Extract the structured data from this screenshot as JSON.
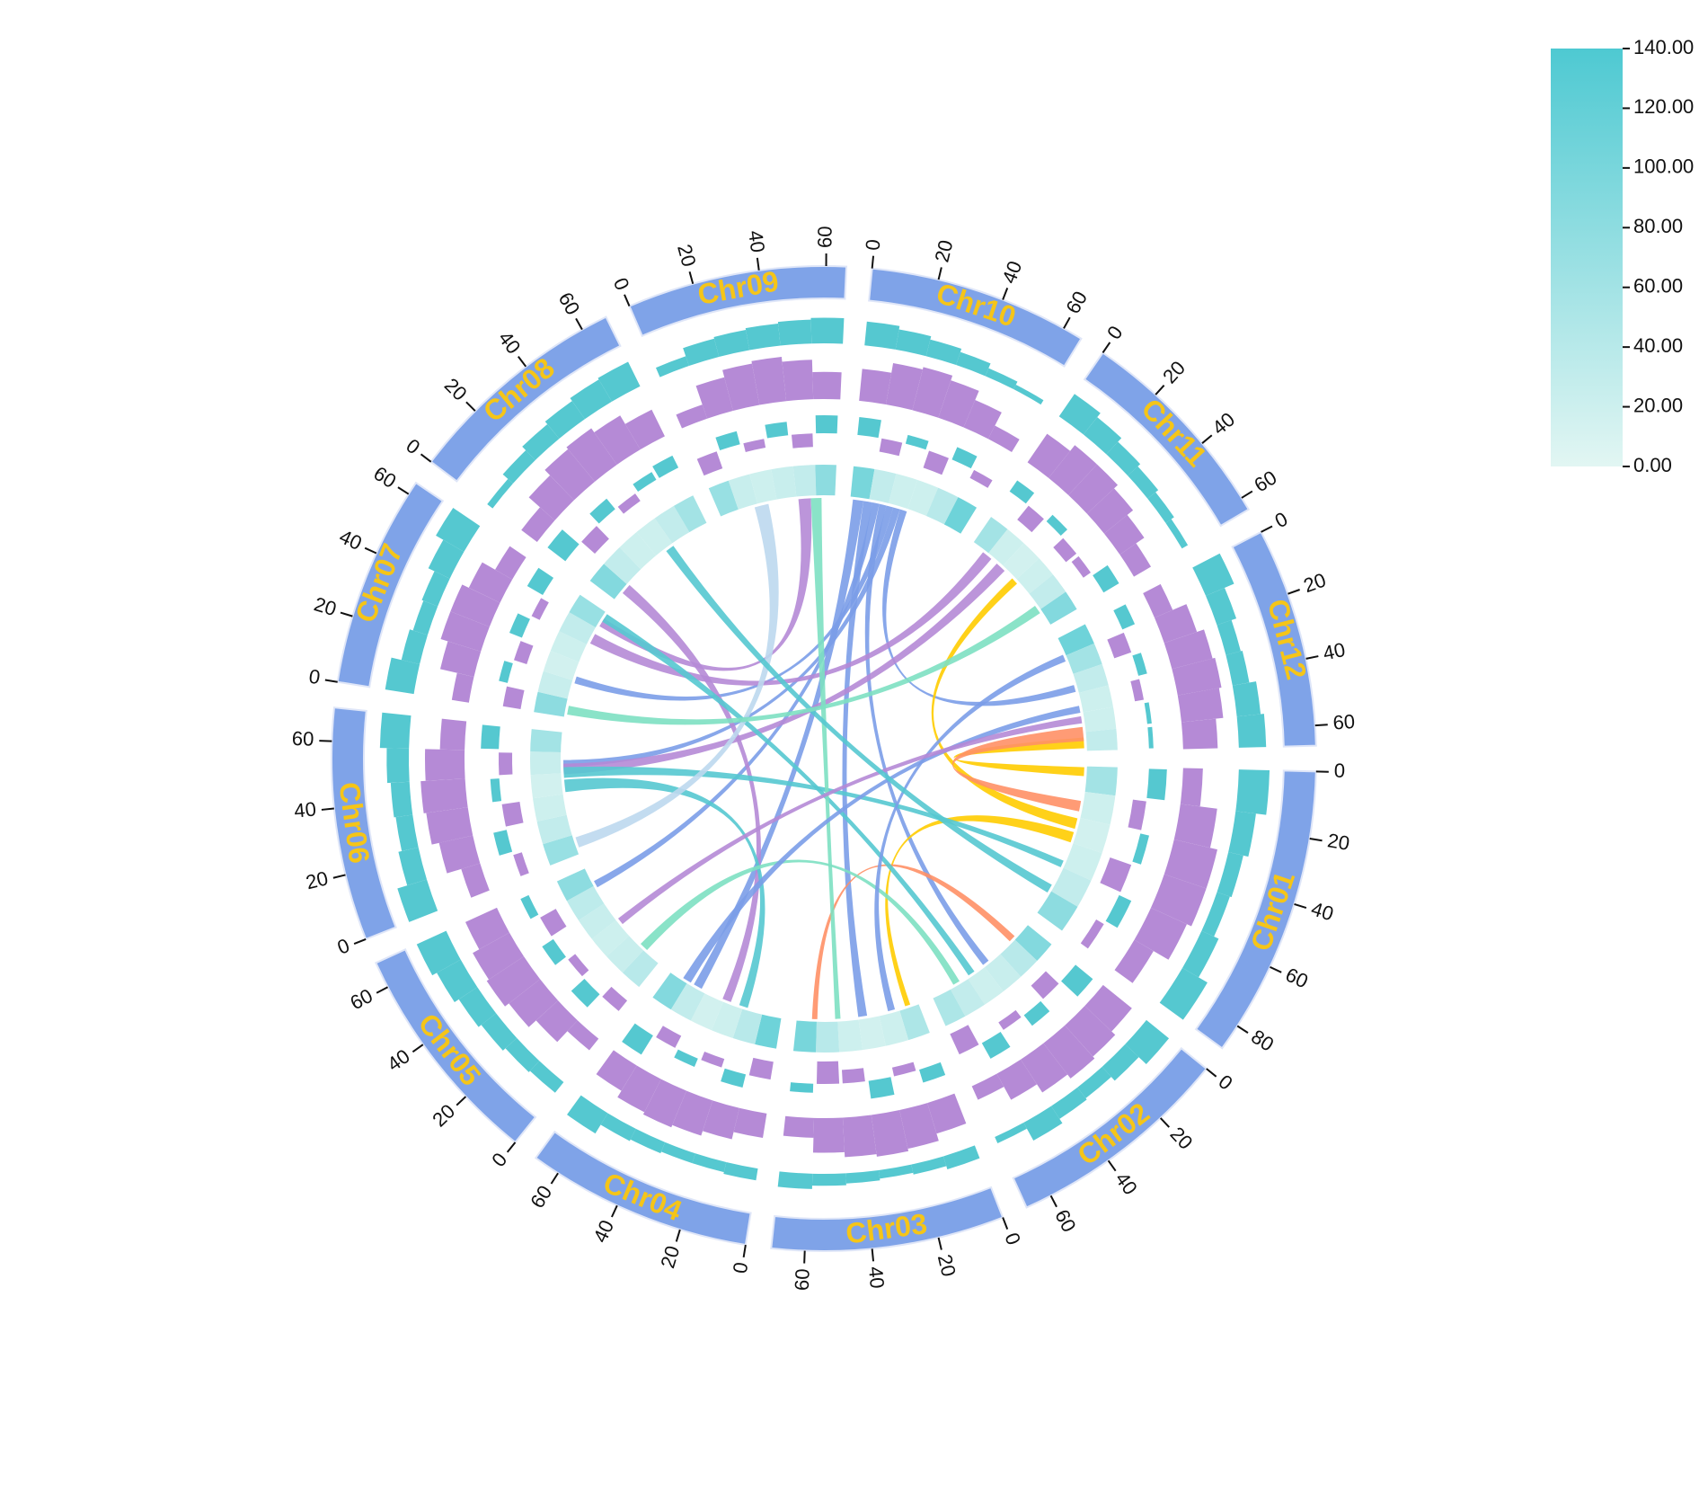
{
  "chart_data": {
    "type": "circos",
    "band_color": "#7fa3e8",
    "name_color": "#f5c518",
    "track_colors": {
      "cyan": "#55c8d0",
      "purple": "#b58ad6"
    },
    "colorbar": {
      "lim": [
        0,
        140
      ],
      "colors": [
        "#e2f6f3",
        "#4ec9d2"
      ],
      "ticks": [
        {
          "value": 0,
          "label": "0.00"
        },
        {
          "value": 20,
          "label": "20.00"
        },
        {
          "value": 40,
          "label": "40.00"
        },
        {
          "value": 60,
          "label": "60.00"
        },
        {
          "value": 80,
          "label": "80.00"
        },
        {
          "value": 100,
          "label": "100.00"
        },
        {
          "value": 120,
          "label": "120.00"
        },
        {
          "value": 140,
          "label": "140.00"
        }
      ]
    },
    "chromosomes": [
      {
        "name": "Chr01",
        "length": 88,
        "ticks": [
          0,
          20,
          40,
          60,
          80
        ],
        "cyan": [
          90,
          60,
          45,
          40,
          55,
          85
        ],
        "purple": [
          40,
          75,
          90,
          90,
          80,
          45
        ],
        "bars": [
          20,
          -15,
          10,
          -25,
          15,
          -10
        ],
        "heat": [
          60,
          20,
          15,
          20,
          30,
          80
        ]
      },
      {
        "name": "Chr02",
        "length": 68,
        "ticks": [
          0,
          20,
          40,
          60
        ],
        "cyan": [
          85,
          55,
          40,
          45,
          60,
          20
        ],
        "purple": [
          75,
          85,
          90,
          80,
          60,
          30
        ],
        "bars": [
          25,
          -20,
          15,
          -10,
          20,
          -25
        ],
        "heat": [
          90,
          40,
          25,
          20,
          30,
          50
        ]
      },
      {
        "name": "Chr03",
        "length": 70,
        "ticks": [
          0,
          20,
          40,
          60
        ],
        "cyan": [
          40,
          30,
          25,
          30,
          35,
          45
        ],
        "purple": [
          65,
          80,
          85,
          80,
          70,
          40
        ],
        "bars": [
          15,
          -10,
          20,
          -15,
          -25,
          10
        ],
        "heat": [
          50,
          20,
          15,
          20,
          40,
          100
        ]
      },
      {
        "name": "Chr04",
        "length": 68,
        "ticks": [
          0,
          20,
          40,
          60
        ],
        "cyan": [
          35,
          30,
          30,
          35,
          40,
          70
        ],
        "purple": [
          50,
          65,
          75,
          80,
          75,
          60
        ],
        "bars": [
          -20,
          15,
          -10,
          10,
          -15,
          25
        ],
        "heat": [
          110,
          40,
          20,
          15,
          30,
          90
        ]
      },
      {
        "name": "Chr05",
        "length": 68,
        "ticks": [
          0,
          20,
          40,
          60
        ],
        "cyan": [
          40,
          45,
          55,
          65,
          80,
          95
        ],
        "purple": [
          30,
          60,
          80,
          90,
          85,
          70
        ],
        "bars": [
          -15,
          20,
          -10,
          15,
          -20,
          10
        ],
        "heat": [
          40,
          25,
          20,
          25,
          35,
          80
        ]
      },
      {
        "name": "Chr06",
        "length": 70,
        "ticks": [
          0,
          20,
          40,
          60
        ],
        "cyan": [
          90,
          60,
          50,
          55,
          65,
          85
        ],
        "purple": [
          40,
          70,
          85,
          90,
          80,
          50
        ],
        "bars": [
          -10,
          15,
          -20,
          10,
          -15,
          20
        ],
        "heat": [
          70,
          30,
          20,
          15,
          25,
          60
        ]
      },
      {
        "name": "Chr07",
        "length": 64,
        "ticks": [
          0,
          20,
          40,
          60
        ],
        "cyan": [
          85,
          55,
          45,
          50,
          70,
          95
        ],
        "purple": [
          35,
          70,
          85,
          85,
          70,
          40
        ],
        "bars": [
          -20,
          10,
          -15,
          15,
          -10,
          20
        ],
        "heat": [
          80,
          25,
          15,
          20,
          30,
          70
        ]
      },
      {
        "name": "Chr08",
        "length": 68,
        "ticks": [
          0,
          20,
          40,
          60
        ],
        "cyan": [
          20,
          40,
          55,
          65,
          75,
          80
        ],
        "purple": [
          40,
          70,
          85,
          90,
          80,
          60
        ],
        "bars": [
          25,
          -20,
          15,
          -10,
          10,
          15
        ],
        "heat": [
          90,
          30,
          20,
          20,
          30,
          60
        ]
      },
      {
        "name": "Chr09",
        "length": 66,
        "ticks": [
          0,
          20,
          40,
          60
        ],
        "cyan": [
          30,
          55,
          60,
          65,
          70,
          75
        ],
        "purple": [
          30,
          70,
          85,
          90,
          80,
          55
        ],
        "bars": [
          -20,
          15,
          -10,
          15,
          -15,
          20
        ],
        "heat": [
          70,
          25,
          20,
          25,
          30,
          80
        ]
      },
      {
        "name": "Chr10",
        "length": 66,
        "ticks": [
          0,
          20,
          40,
          60
        ],
        "cyan": [
          70,
          60,
          50,
          40,
          25,
          15
        ],
        "purple": [
          65,
          85,
          90,
          80,
          60,
          30
        ],
        "bars": [
          20,
          -15,
          10,
          -20,
          15,
          -10
        ],
        "heat": [
          100,
          30,
          20,
          20,
          40,
          110
        ]
      },
      {
        "name": "Chr11",
        "length": 64,
        "ticks": [
          0,
          20,
          40,
          60
        ],
        "cyan": [
          80,
          65,
          50,
          40,
          30,
          20
        ],
        "purple": [
          70,
          85,
          85,
          75,
          60,
          40
        ],
        "bars": [
          15,
          -20,
          10,
          -15,
          -10,
          20
        ],
        "heat": [
          60,
          20,
          15,
          20,
          30,
          90
        ]
      },
      {
        "name": "Chr12",
        "length": 66,
        "ticks": [
          0,
          20,
          40,
          60
        ],
        "cyan": [
          90,
          60,
          45,
          50,
          70,
          80
        ],
        "purple": [
          40,
          70,
          85,
          90,
          85,
          70
        ],
        "bars": [
          15,
          -20,
          10,
          -10,
          5,
          5
        ],
        "heat": [
          110,
          60,
          30,
          20,
          20,
          30
        ]
      }
    ],
    "links": [
      {
        "source": [
          9,
          2,
          8
        ],
        "target": [
          3,
          48,
          53
        ],
        "color": "#7b9de8"
      },
      {
        "source": [
          9,
          8,
          13
        ],
        "target": [
          2,
          30,
          35
        ],
        "color": "#7b9de8"
      },
      {
        "source": [
          9,
          13,
          17
        ],
        "target": [
          4,
          55,
          59
        ],
        "color": "#7b9de8"
      },
      {
        "source": [
          9,
          17,
          21
        ],
        "target": [
          1,
          30,
          34
        ],
        "color": "#7b9de8"
      },
      {
        "source": [
          9,
          21,
          25
        ],
        "target": [
          6,
          20,
          24
        ],
        "color": "#7b9de8"
      },
      {
        "source": [
          9,
          25,
          29
        ],
        "target": [
          5,
          50,
          54
        ],
        "color": "#7b9de8"
      },
      {
        "source": [
          9,
          29,
          33
        ],
        "target": [
          11,
          28,
          32
        ],
        "color": "#7b9de8"
      },
      {
        "source": [
          0,
          1,
          6
        ],
        "target": [
          11,
          58,
          64
        ],
        "color": "#ffcc00"
      },
      {
        "source": [
          0,
          30,
          36
        ],
        "target": [
          10,
          30,
          34
        ],
        "color": "#ffcc00"
      },
      {
        "source": [
          0,
          38,
          44
        ],
        "target": [
          2,
          5,
          8
        ],
        "color": "#ffcc00"
      },
      {
        "source": [
          11,
          52,
          60
        ],
        "target": [
          0,
          20,
          26
        ],
        "color": "#ff9066"
      },
      {
        "source": [
          1,
          10,
          14
        ],
        "target": [
          2,
          58,
          61
        ],
        "color": "#ff9066"
      },
      {
        "source": [
          10,
          8,
          14
        ],
        "target": [
          6,
          44,
          50
        ],
        "color": "#b58ad6"
      },
      {
        "source": [
          10,
          18,
          24
        ],
        "target": [
          5,
          46,
          52
        ],
        "color": "#b58ad6"
      },
      {
        "source": [
          7,
          6,
          12
        ],
        "target": [
          3,
          30,
          35
        ],
        "color": "#b58ad6"
      },
      {
        "source": [
          8,
          45,
          52
        ],
        "target": [
          6,
          55,
          60
        ],
        "color": "#b58ad6"
      },
      {
        "source": [
          6,
          58,
          63
        ],
        "target": [
          1,
          40,
          44
        ],
        "color": "#55c8d0"
      },
      {
        "source": [
          5,
          36,
          43
        ],
        "target": [
          3,
          20,
          25
        ],
        "color": "#55c8d0"
      },
      {
        "source": [
          5,
          44,
          50
        ],
        "target": [
          0,
          55,
          59
        ],
        "color": "#55c8d0"
      },
      {
        "source": [
          4,
          10,
          15
        ],
        "target": [
          1,
          50,
          54
        ],
        "color": "#7de0c2"
      },
      {
        "source": [
          8,
          52,
          58
        ],
        "target": [
          2,
          45,
          48
        ],
        "color": "#7de0c2"
      },
      {
        "source": [
          8,
          20,
          28
        ],
        "target": [
          5,
          4,
          10
        ],
        "color": "#bcd8ee"
      },
      {
        "source": [
          3,
          55,
          60
        ],
        "target": [
          11,
          40,
          44
        ],
        "color": "#7b9de8"
      },
      {
        "source": [
          2,
          14,
          18
        ],
        "target": [
          11,
          10,
          14
        ],
        "color": "#7b9de8"
      },
      {
        "source": [
          4,
          30,
          34
        ],
        "target": [
          11,
          46,
          50
        ],
        "color": "#b58ad6"
      },
      {
        "source": [
          7,
          40,
          45
        ],
        "target": [
          0,
          70,
          75
        ],
        "color": "#55c8d0"
      },
      {
        "source": [
          6,
          2,
          7
        ],
        "target": [
          10,
          50,
          55
        ],
        "color": "#7de0c2"
      }
    ]
  }
}
